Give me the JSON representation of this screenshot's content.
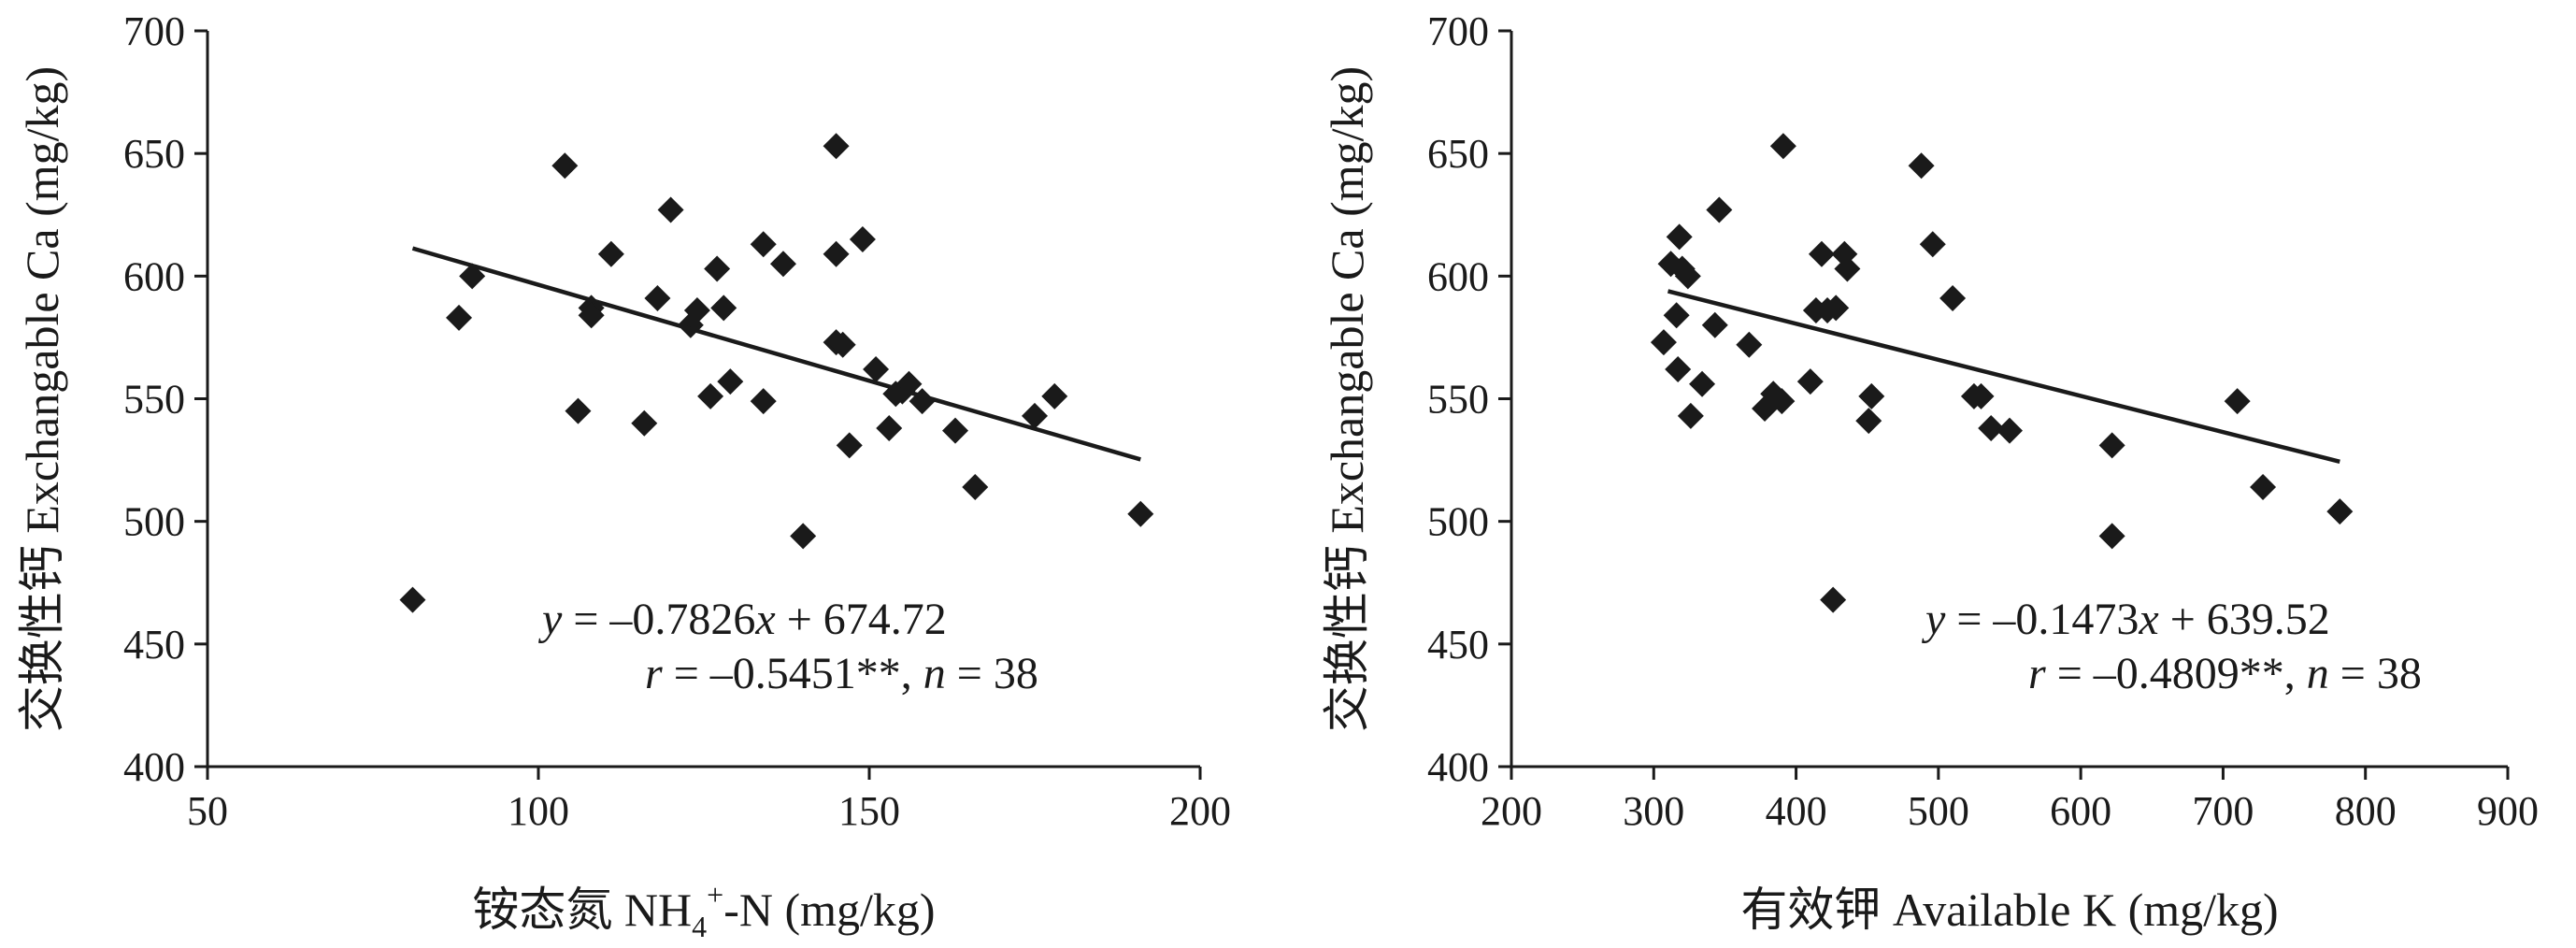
{
  "chart_data": [
    {
      "type": "scatter",
      "xlabel": "铵态氮 NH4+-N (mg/kg)",
      "xlabel_parts": {
        "cn": "铵态氮 NH",
        "sub": "4",
        "sup": "+",
        "tail": "-N (mg/kg)"
      },
      "ylabel": "交换性钙 Exchangable Ca (mg/kg)",
      "xlim": [
        50,
        200
      ],
      "ylim": [
        400,
        700
      ],
      "xticks": [
        50,
        100,
        150,
        200
      ],
      "yticks": [
        400,
        450,
        500,
        550,
        600,
        650,
        700
      ],
      "xtick_labels": [
        "50",
        "100",
        "150",
        "200"
      ],
      "ytick_labels": [
        "400",
        "450",
        "500",
        "550",
        "600",
        "650",
        "700"
      ],
      "grid": false,
      "equation": {
        "line1": "y = –0.7826x + 674.72",
        "line2": "r = –0.5451**, n = 38"
      },
      "trendline": {
        "slope": -0.7826,
        "intercept": 674.72,
        "x_range": [
          81,
          191
        ]
      },
      "points": [
        [
          81,
          468
        ],
        [
          88,
          583
        ],
        [
          90,
          600
        ],
        [
          104,
          645
        ],
        [
          106,
          545
        ],
        [
          108,
          587
        ],
        [
          108,
          584
        ],
        [
          111,
          609
        ],
        [
          116,
          540
        ],
        [
          118,
          591
        ],
        [
          120,
          627
        ],
        [
          123,
          580
        ],
        [
          124,
          586
        ],
        [
          126,
          551
        ],
        [
          127,
          603
        ],
        [
          128,
          587
        ],
        [
          129,
          557
        ],
        [
          134,
          549
        ],
        [
          134,
          613
        ],
        [
          137,
          605
        ],
        [
          140,
          494
        ],
        [
          145,
          653
        ],
        [
          145,
          609
        ],
        [
          145,
          573
        ],
        [
          146,
          572
        ],
        [
          147,
          531
        ],
        [
          149,
          615
        ],
        [
          151,
          562
        ],
        [
          153,
          538
        ],
        [
          154,
          552
        ],
        [
          156,
          556
        ],
        [
          158,
          549
        ],
        [
          163,
          537
        ],
        [
          166,
          514
        ],
        [
          175,
          543
        ],
        [
          178,
          551
        ],
        [
          191,
          503
        ],
        [
          155,
          553
        ]
      ]
    },
    {
      "type": "scatter",
      "xlabel": "有效钾 Available K (mg/kg)",
      "ylabel": "交换性钙 Exchangable Ca (mg/kg)",
      "xlim": [
        200,
        900
      ],
      "ylim": [
        400,
        700
      ],
      "xticks": [
        200,
        300,
        400,
        500,
        600,
        700,
        800,
        900
      ],
      "yticks": [
        400,
        450,
        500,
        550,
        600,
        650,
        700
      ],
      "xtick_labels": [
        "200",
        "300",
        "400",
        "500",
        "600",
        "700",
        "800",
        "900"
      ],
      "ytick_labels": [
        "400",
        "450",
        "500",
        "550",
        "600",
        "650",
        "700"
      ],
      "grid": false,
      "equation": {
        "line1": "y = –0.1473x + 639.52",
        "line2": "r = –0.4809**, n = 38"
      },
      "trendline": {
        "slope": -0.1473,
        "intercept": 639.52,
        "x_range": [
          310,
          782
        ]
      },
      "points": [
        [
          307,
          573
        ],
        [
          312,
          605
        ],
        [
          316,
          584
        ],
        [
          317,
          562
        ],
        [
          318,
          616
        ],
        [
          320,
          603
        ],
        [
          324,
          600
        ],
        [
          326,
          543
        ],
        [
          334,
          556
        ],
        [
          343,
          580
        ],
        [
          346,
          627
        ],
        [
          367,
          572
        ],
        [
          378,
          546
        ],
        [
          384,
          552
        ],
        [
          390,
          549
        ],
        [
          391,
          653
        ],
        [
          410,
          557
        ],
        [
          414,
          586
        ],
        [
          418,
          609
        ],
        [
          422,
          586
        ],
        [
          426,
          468
        ],
        [
          428,
          587
        ],
        [
          434,
          609
        ],
        [
          436,
          603
        ],
        [
          451,
          541
        ],
        [
          453,
          551
        ],
        [
          488,
          645
        ],
        [
          496,
          613
        ],
        [
          510,
          591
        ],
        [
          525,
          551
        ],
        [
          530,
          551
        ],
        [
          537,
          538
        ],
        [
          550,
          537
        ],
        [
          622,
          531
        ],
        [
          622,
          494
        ],
        [
          710,
          549
        ],
        [
          728,
          514
        ],
        [
          782,
          504
        ]
      ]
    }
  ]
}
